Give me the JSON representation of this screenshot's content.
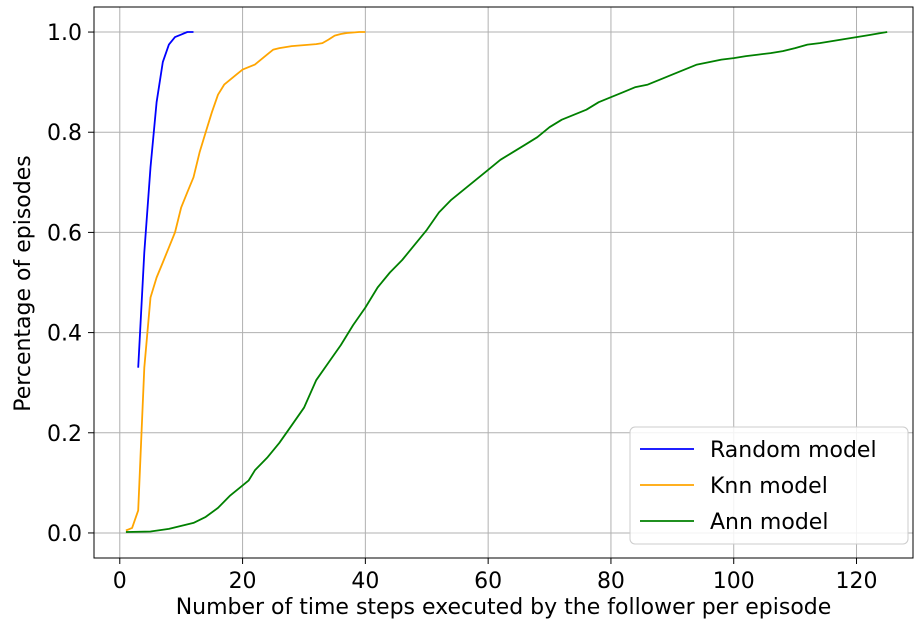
{
  "chart_data": {
    "type": "line",
    "title": "",
    "xlabel": "Number of time steps executed by the follower per episode",
    "ylabel": "Percentage of episodes",
    "xlim": [
      -4.2,
      129.2
    ],
    "ylim": [
      -0.05,
      1.05
    ],
    "xticks": [
      0,
      20,
      40,
      60,
      80,
      100,
      120
    ],
    "yticks": [
      0.0,
      0.2,
      0.4,
      0.6,
      0.8,
      1.0
    ],
    "xtick_labels": [
      "0",
      "20",
      "40",
      "60",
      "80",
      "100",
      "120"
    ],
    "ytick_labels": [
      "0.0",
      "0.2",
      "0.4",
      "0.6",
      "0.8",
      "1.0"
    ],
    "grid": true,
    "legend_position": "lower-right",
    "series": [
      {
        "name": "Random model",
        "color": "#0000ff",
        "x": [
          3,
          4,
          5,
          6,
          7,
          8,
          9,
          10,
          11,
          12
        ],
        "y": [
          0.33,
          0.56,
          0.73,
          0.86,
          0.94,
          0.975,
          0.99,
          0.995,
          1.0,
          1.0
        ]
      },
      {
        "name": "Knn model",
        "color": "#ffa500",
        "x": [
          1,
          2,
          3,
          4,
          5,
          6,
          7,
          8,
          9,
          10,
          11,
          12,
          13,
          14,
          15,
          16,
          17,
          18,
          19,
          20,
          21,
          22,
          23,
          24,
          25,
          26,
          27,
          28,
          29,
          30,
          31,
          32,
          33,
          34,
          35,
          36,
          37,
          38,
          39,
          40
        ],
        "y": [
          0.005,
          0.01,
          0.045,
          0.33,
          0.47,
          0.51,
          0.54,
          0.57,
          0.6,
          0.65,
          0.68,
          0.71,
          0.76,
          0.8,
          0.84,
          0.875,
          0.895,
          0.905,
          0.915,
          0.925,
          0.93,
          0.935,
          0.945,
          0.955,
          0.965,
          0.968,
          0.97,
          0.972,
          0.973,
          0.974,
          0.975,
          0.976,
          0.978,
          0.985,
          0.993,
          0.996,
          0.998,
          0.999,
          1.0,
          1.0
        ]
      },
      {
        "name": "Ann model",
        "color": "#008000",
        "x": [
          1,
          5,
          8,
          10,
          12,
          14,
          16,
          18,
          20,
          21,
          22,
          24,
          26,
          28,
          30,
          32,
          34,
          36,
          38,
          40,
          42,
          44,
          46,
          48,
          50,
          52,
          54,
          56,
          58,
          60,
          62,
          64,
          66,
          68,
          70,
          72,
          74,
          76,
          78,
          80,
          82,
          84,
          86,
          88,
          90,
          92,
          94,
          96,
          98,
          100,
          102,
          104,
          106,
          108,
          110,
          112,
          114,
          116,
          118,
          120,
          122,
          124,
          125
        ],
        "y": [
          0.002,
          0.003,
          0.008,
          0.014,
          0.02,
          0.032,
          0.05,
          0.075,
          0.095,
          0.105,
          0.125,
          0.15,
          0.18,
          0.215,
          0.25,
          0.305,
          0.34,
          0.375,
          0.415,
          0.45,
          0.49,
          0.52,
          0.545,
          0.575,
          0.605,
          0.64,
          0.665,
          0.685,
          0.705,
          0.725,
          0.745,
          0.76,
          0.775,
          0.79,
          0.81,
          0.825,
          0.835,
          0.845,
          0.86,
          0.87,
          0.88,
          0.89,
          0.895,
          0.905,
          0.915,
          0.925,
          0.935,
          0.94,
          0.945,
          0.948,
          0.952,
          0.955,
          0.958,
          0.962,
          0.968,
          0.975,
          0.978,
          0.982,
          0.986,
          0.99,
          0.994,
          0.998,
          1.0
        ]
      }
    ]
  }
}
